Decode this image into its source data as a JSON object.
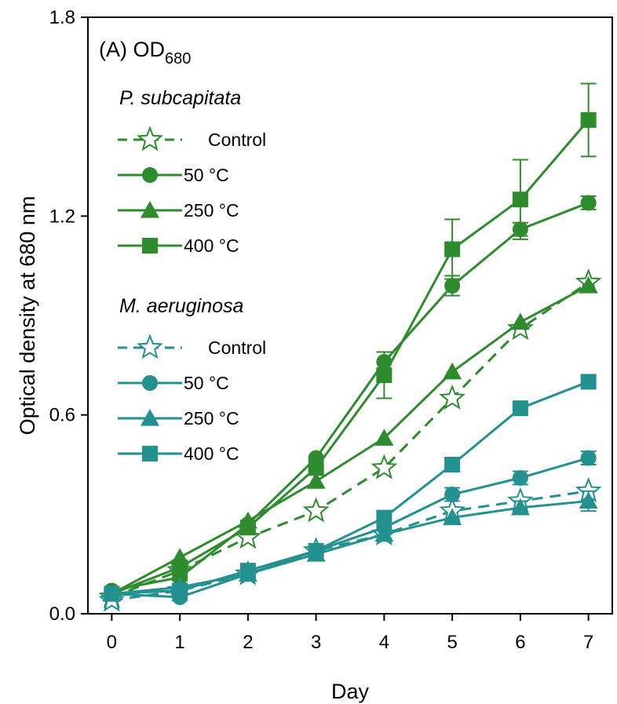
{
  "chart_data": {
    "type": "line",
    "panel_label": "(A) OD",
    "panel_label_subscript": "680",
    "xlabel": "Day",
    "ylabel": "Optical density at 680 nm",
    "xlim": [
      -0.35,
      7.35
    ],
    "ylim": [
      0.0,
      1.8
    ],
    "x_ticks": [
      "0",
      "1",
      "2",
      "3",
      "4",
      "5",
      "6",
      "7"
    ],
    "y_ticks": [
      "0.0",
      "0.6",
      "1.2",
      "1.8"
    ],
    "x": [
      0,
      1,
      2,
      3,
      4,
      5,
      6,
      7
    ],
    "groups": [
      {
        "name": "P. subcapitata",
        "color": "#2e8b2e",
        "series": [
          {
            "name": "Control",
            "marker": "star",
            "dashed": true,
            "values": [
              0.05,
              0.13,
              0.23,
              0.31,
              0.44,
              0.65,
              0.86,
              1.0
            ],
            "errors": [
              0.0,
              0.0,
              0.0,
              0.0,
              0.0,
              0.0,
              0.0,
              0.0
            ]
          },
          {
            "name": "50 °C",
            "marker": "circle",
            "dashed": false,
            "values": [
              0.07,
              0.11,
              0.27,
              0.47,
              0.76,
              0.99,
              1.16,
              1.24
            ],
            "errors": [
              0.0,
              0.0,
              0.0,
              0.0,
              0.0,
              0.03,
              0.02,
              0.02
            ]
          },
          {
            "name": "250 °C",
            "marker": "triangle",
            "dashed": false,
            "values": [
              0.06,
              0.17,
              0.28,
              0.4,
              0.53,
              0.73,
              0.88,
              0.99
            ],
            "errors": [
              0.0,
              0.0,
              0.0,
              0.0,
              0.0,
              0.0,
              0.0,
              0.0
            ]
          },
          {
            "name": "400 °C",
            "marker": "square",
            "dashed": false,
            "values": [
              0.06,
              0.14,
              0.26,
              0.44,
              0.72,
              1.1,
              1.25,
              1.49
            ],
            "errors": [
              0.0,
              0.0,
              0.0,
              0.0,
              0.07,
              0.09,
              0.12,
              0.11
            ]
          }
        ]
      },
      {
        "name": "M. aeruginosa",
        "color": "#23918f",
        "series": [
          {
            "name": "Control",
            "marker": "star",
            "dashed": true,
            "values": [
              0.04,
              0.07,
              0.12,
              0.19,
              0.24,
              0.31,
              0.34,
              0.37
            ],
            "errors": [
              0.0,
              0.0,
              0.0,
              0.0,
              0.0,
              0.0,
              0.0,
              0.0
            ]
          },
          {
            "name": "50 °C",
            "marker": "circle",
            "dashed": false,
            "values": [
              0.06,
              0.05,
              0.12,
              0.19,
              0.26,
              0.36,
              0.41,
              0.47
            ],
            "errors": [
              0.0,
              0.0,
              0.0,
              0.0,
              0.0,
              0.02,
              0.02,
              0.02
            ]
          },
          {
            "name": "250 °C",
            "marker": "triangle",
            "dashed": false,
            "values": [
              0.06,
              0.08,
              0.12,
              0.18,
              0.24,
              0.29,
              0.32,
              0.34
            ],
            "errors": [
              0.0,
              0.0,
              0.0,
              0.0,
              0.0,
              0.0,
              0.02,
              0.03
            ]
          },
          {
            "name": "400 °C",
            "marker": "square",
            "dashed": false,
            "values": [
              0.06,
              0.07,
              0.13,
              0.19,
              0.29,
              0.45,
              0.62,
              0.7
            ],
            "errors": [
              0.0,
              0.0,
              0.0,
              0.0,
              0.0,
              0.0,
              0.0,
              0.0
            ]
          }
        ]
      }
    ],
    "legend_placement": "top-left",
    "grid": false
  }
}
